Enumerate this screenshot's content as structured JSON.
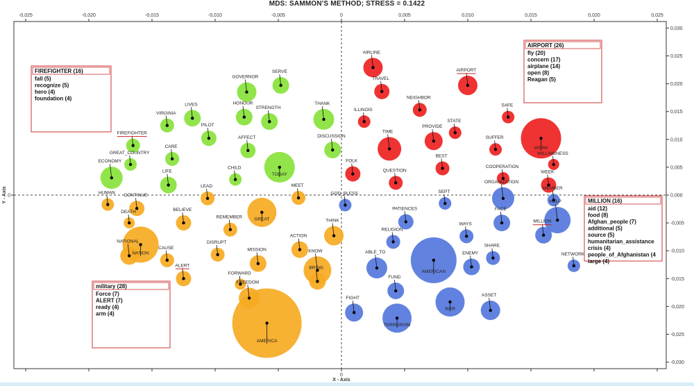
{
  "title": "MDS: SAMMON'S METHOD; STRESS = 0.1422",
  "chart_data": {
    "type": "scatter",
    "title": "MDS: SAMMON'S METHOD; STRESS = 0.1422",
    "xlabel": "X - Axis",
    "ylabel": "Y - Axis",
    "xlim": [
      -0.027,
      0.026
    ],
    "ylim": [
      -0.031,
      0.031
    ],
    "x_ticks": [
      "-0,025",
      "-0,020",
      "-0,015",
      "-0,010",
      "-0,005",
      "0",
      "0,005",
      "0,010",
      "0,015",
      "0,020",
      "0,025"
    ],
    "y_ticks": [
      "0,030",
      "0,025",
      "0,020",
      "0,015",
      "0,010",
      "0,005",
      "0,000",
      "-0,005",
      "-0,010",
      "-0,015",
      "-0,020",
      "-0,025",
      "-0,030"
    ],
    "colors": {
      "green": "#88e23a",
      "red": "#ee2222",
      "orange": "#f6aa22",
      "blue": "#5577dd"
    },
    "points": [
      {
        "label": "GOVERNOR",
        "x": -0.0075,
        "y": 0.0185,
        "r": 14,
        "color": "green"
      },
      {
        "label": "SERVE",
        "x": -0.0048,
        "y": 0.0197,
        "r": 12,
        "color": "green"
      },
      {
        "label": "LIVES",
        "x": -0.0118,
        "y": 0.0138,
        "r": 12,
        "color": "green"
      },
      {
        "label": "HONOUR",
        "x": -0.0077,
        "y": 0.014,
        "r": 12,
        "color": "green"
      },
      {
        "label": "VIRGINIA",
        "x": -0.0138,
        "y": 0.0125,
        "r": 10,
        "color": "green"
      },
      {
        "label": "STRENGTH",
        "x": -0.0057,
        "y": 0.0132,
        "r": 12,
        "color": "green"
      },
      {
        "label": "THANK",
        "x": -0.0014,
        "y": 0.0136,
        "r": 15,
        "color": "green"
      },
      {
        "label": "PILOT",
        "x": -0.0105,
        "y": 0.0102,
        "r": 11,
        "color": "green"
      },
      {
        "label": "FIREFIGHTER",
        "x": -0.0165,
        "y": 0.0089,
        "r": 10,
        "color": "green"
      },
      {
        "label": "AFFECT",
        "x": -0.0074,
        "y": 0.008,
        "r": 11,
        "color": "green"
      },
      {
        "label": "DISCUSSION",
        "x": -0.0007,
        "y": 0.0081,
        "r": 12,
        "color": "green"
      },
      {
        "label": "CARE",
        "x": -0.0134,
        "y": 0.0065,
        "r": 10,
        "color": "green"
      },
      {
        "label": "TODAY",
        "x": -0.0049,
        "y": 0.005,
        "r": 22,
        "color": "green"
      },
      {
        "label": "GREAT_COUNTRY",
        "x": -0.0167,
        "y": 0.0055,
        "r": 9,
        "color": "green"
      },
      {
        "label": "ECONOMY",
        "x": -0.0182,
        "y": 0.0031,
        "r": 16,
        "color": "green"
      },
      {
        "label": "CHILD",
        "x": -0.0084,
        "y": 0.0028,
        "r": 9,
        "color": "green"
      },
      {
        "label": "LIFE",
        "x": -0.0137,
        "y": 0.0018,
        "r": 12,
        "color": "green"
      },
      {
        "label": "AIRLINE",
        "x": 0.0025,
        "y": 0.0229,
        "r": 14,
        "color": "red"
      },
      {
        "label": "AIRPORT",
        "x": 0.01,
        "y": 0.0197,
        "r": 14,
        "color": "red"
      },
      {
        "label": "TRAVEL",
        "x": 0.0032,
        "y": 0.0186,
        "r": 11,
        "color": "red"
      },
      {
        "label": "NEIGHBOR",
        "x": 0.0062,
        "y": 0.0153,
        "r": 10,
        "color": "red"
      },
      {
        "label": "SAFE",
        "x": 0.0132,
        "y": 0.014,
        "r": 9,
        "color": "red"
      },
      {
        "label": "ILLINOIS",
        "x": 0.0018,
        "y": 0.0132,
        "r": 9,
        "color": "red"
      },
      {
        "label": "STATE",
        "x": 0.009,
        "y": 0.0112,
        "r": 9,
        "color": "red"
      },
      {
        "label": "WORK",
        "x": 0.0158,
        "y": 0.0102,
        "r": 29,
        "color": "red"
      },
      {
        "label": "TIME",
        "x": 0.0038,
        "y": 0.0083,
        "r": 17,
        "color": "red"
      },
      {
        "label": "PROVIDE",
        "x": 0.0073,
        "y": 0.0097,
        "r": 13,
        "color": "red"
      },
      {
        "label": "SUFFER",
        "x": 0.0122,
        "y": 0.0082,
        "r": 9,
        "color": "red"
      },
      {
        "label": "BEST",
        "x": 0.008,
        "y": 0.0048,
        "r": 10,
        "color": "red"
      },
      {
        "label": "FOLK",
        "x": 0.0009,
        "y": 0.0038,
        "r": 11,
        "color": "red"
      },
      {
        "label": "COOPERATION",
        "x": 0.0128,
        "y": 0.003,
        "r": 9,
        "color": "red"
      },
      {
        "label": "WILLINGNESS",
        "x": 0.0168,
        "y": 0.0055,
        "r": 8,
        "color": "red"
      },
      {
        "label": "QUESTION",
        "x": 0.0043,
        "y": 0.0022,
        "r": 10,
        "color": "red"
      },
      {
        "label": "WEEK",
        "x": 0.0164,
        "y": 0.0018,
        "r": 11,
        "color": "red"
      },
      {
        "label": "GOD_BLESS",
        "x": 0.0003,
        "y": -0.0018,
        "r": 9,
        "color": "blue"
      },
      {
        "label": "SEPT",
        "x": 0.0082,
        "y": -0.0015,
        "r": 9,
        "color": "blue"
      },
      {
        "label": "ORGANIZATION",
        "x": 0.0128,
        "y": -0.0006,
        "r": 16,
        "color": "blue"
      },
      {
        "label": "MEMBER",
        "x": 0.0168,
        "y": -0.0009,
        "r": 9,
        "color": "blue"
      },
      {
        "label": "HELP",
        "x": 0.0171,
        "y": -0.0045,
        "r": 19,
        "color": "blue"
      },
      {
        "label": "PATIENCES",
        "x": 0.0051,
        "y": -0.0048,
        "r": 11,
        "color": "blue"
      },
      {
        "label": "FACE",
        "x": 0.0127,
        "y": -0.005,
        "r": 12,
        "color": "blue"
      },
      {
        "label": "MILLION",
        "x": 0.016,
        "y": -0.0072,
        "r": 12,
        "color": "blue"
      },
      {
        "label": "WAYS",
        "x": 0.0099,
        "y": -0.0074,
        "r": 10,
        "color": "blue"
      },
      {
        "label": "RELIGION",
        "x": 0.0041,
        "y": -0.0084,
        "r": 10,
        "color": "blue"
      },
      {
        "label": "AMERICAN",
        "x": 0.0073,
        "y": -0.0117,
        "r": 33,
        "color": "blue"
      },
      {
        "label": "SHARE",
        "x": 0.012,
        "y": -0.0113,
        "r": 10,
        "color": "blue"
      },
      {
        "label": "NETWORK",
        "x": 0.0184,
        "y": -0.0127,
        "r": 9,
        "color": "blue"
      },
      {
        "label": "ENEMY",
        "x": 0.0103,
        "y": -0.0129,
        "r": 12,
        "color": "blue"
      },
      {
        "label": "ABLE_TO",
        "x": 0.0028,
        "y": -0.0131,
        "r": 15,
        "color": "blue"
      },
      {
        "label": "FUND",
        "x": 0.0043,
        "y": -0.0172,
        "r": 12,
        "color": "blue"
      },
      {
        "label": "WAR",
        "x": 0.0086,
        "y": -0.0192,
        "r": 21,
        "color": "blue"
      },
      {
        "label": "FIGHT",
        "x": 0.001,
        "y": -0.0211,
        "r": 13,
        "color": "blue"
      },
      {
        "label": "ASSET",
        "x": 0.0118,
        "y": -0.0207,
        "r": 14,
        "color": "blue"
      },
      {
        "label": "TERRORISM",
        "x": 0.0044,
        "y": -0.0221,
        "r": 21,
        "color": "blue"
      },
      {
        "label": "LEAD",
        "x": -0.0106,
        "y": -0.0006,
        "r": 10,
        "color": "orange"
      },
      {
        "label": "MEET",
        "x": -0.0034,
        "y": -0.0005,
        "r": 10,
        "color": "orange"
      },
      {
        "label": "HUMAN",
        "x": -0.0185,
        "y": -0.0017,
        "r": 9,
        "color": "orange"
      },
      {
        "label": "CONTINUE",
        "x": -0.0162,
        "y": -0.0024,
        "r": 11,
        "color": "orange"
      },
      {
        "label": "GREAT",
        "x": -0.0063,
        "y": -0.0031,
        "r": 21,
        "color": "orange"
      },
      {
        "label": "DEATH",
        "x": -0.0168,
        "y": -0.005,
        "r": 8,
        "color": "orange"
      },
      {
        "label": "BELIEVE",
        "x": -0.0125,
        "y": -0.005,
        "r": 11,
        "color": "orange"
      },
      {
        "label": "THINK",
        "x": -0.0006,
        "y": -0.0073,
        "r": 14,
        "color": "orange"
      },
      {
        "label": "REMEMBER",
        "x": -0.0088,
        "y": -0.0062,
        "r": 10,
        "color": "orange"
      },
      {
        "label": "NATION",
        "x": -0.0159,
        "y": -0.0089,
        "r": 26,
        "color": "orange"
      },
      {
        "label": "NATIONAL",
        "x": -0.0168,
        "y": -0.0109,
        "r": 13,
        "color": "orange"
      },
      {
        "label": "ACTION",
        "x": -0.0033,
        "y": -0.0098,
        "r": 12,
        "color": "orange"
      },
      {
        "label": "DISRUPT",
        "x": -0.0098,
        "y": -0.0107,
        "r": 10,
        "color": "orange"
      },
      {
        "label": "CAUSE",
        "x": -0.0138,
        "y": -0.0117,
        "r": 10,
        "color": "orange"
      },
      {
        "label": "MISSION",
        "x": -0.0066,
        "y": -0.0123,
        "r": 12,
        "color": "orange"
      },
      {
        "label": "KNOW",
        "x": -0.0019,
        "y": -0.0135,
        "r": 20,
        "color": "orange"
      },
      {
        "label": "BRING",
        "x": -0.0019,
        "y": -0.0155,
        "r": 12,
        "color": "orange"
      },
      {
        "label": "ALERT",
        "x": -0.0125,
        "y": -0.015,
        "r": 11,
        "color": "orange"
      },
      {
        "label": "FORWARD",
        "x": -0.008,
        "y": -0.016,
        "r": 8,
        "color": "orange"
      },
      {
        "label": "FREEDOM",
        "x": -0.0073,
        "y": -0.0185,
        "r": 15,
        "color": "orange"
      },
      {
        "label": "AMERICA",
        "x": -0.0059,
        "y": -0.023,
        "r": 50,
        "color": "orange"
      }
    ],
    "label_offsets_note": "",
    "legend_boxes": [
      {
        "header": "FIREFIGHTER (16)",
        "items": [
          "fall (5)",
          "recognize (5)",
          "hero (4)",
          "foundation (4)"
        ]
      },
      {
        "header": "AIRPORT (26)",
        "items": [
          "fly (20)",
          "concern (17)",
          "airplane (14)",
          "open (8)",
          "Reagan (5)"
        ]
      },
      {
        "header": "MILLION (16)",
        "items": [
          "aid (12)",
          "food (8)",
          "Afghan_people (7)",
          "additional (5)",
          "source (5)",
          "humanitarian_assistance",
          "crisis (4)",
          "people_of_Afghanistan (4",
          "large (4)"
        ]
      },
      {
        "header": "military (28)",
        "items": [
          "Force (7)",
          "ALERT (7)",
          "ready (4)",
          "arm (4)"
        ]
      }
    ],
    "underlined_labels": [
      "FIREFIGHTER",
      "AIRPORT",
      "MILLION",
      "ALERT"
    ]
  }
}
